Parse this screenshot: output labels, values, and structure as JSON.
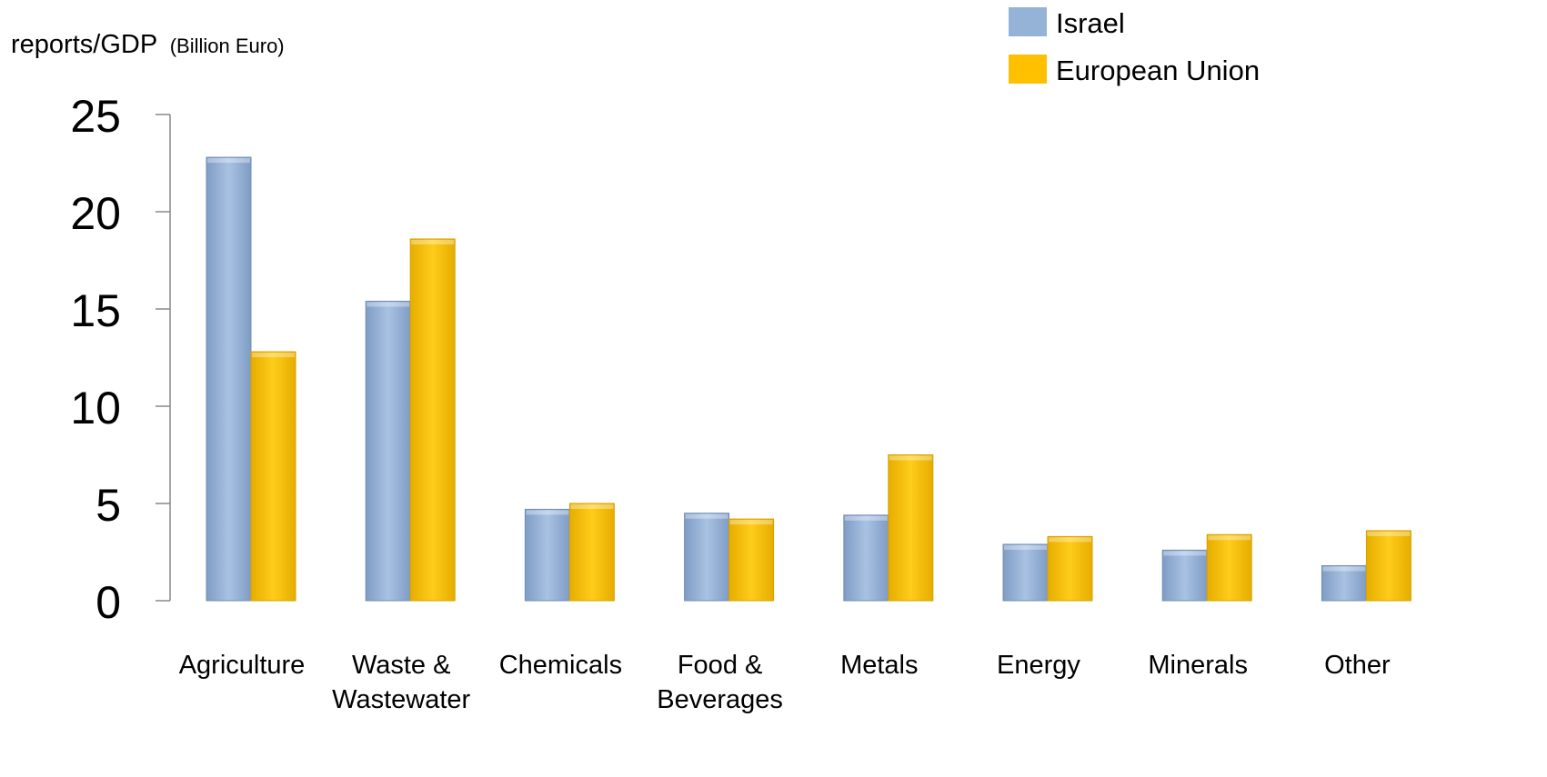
{
  "chart_data": {
    "type": "bar",
    "ylabel": "reports/GDP",
    "ylabel_unit": "(Billion Euro)",
    "categories": [
      [
        "Agriculture"
      ],
      [
        "Waste &",
        "Wastewater"
      ],
      [
        "Chemicals"
      ],
      [
        "Food &",
        "Beverages"
      ],
      [
        "Metals"
      ],
      [
        "Energy"
      ],
      [
        "Minerals"
      ],
      [
        "Other"
      ]
    ],
    "series": [
      {
        "name": "Israel",
        "color": "#95B3D7",
        "values": [
          22.8,
          15.4,
          4.7,
          4.5,
          4.4,
          2.9,
          2.6,
          1.8
        ]
      },
      {
        "name": "European Union",
        "color": "#FFC000",
        "values": [
          12.8,
          18.6,
          5.0,
          4.2,
          7.5,
          3.3,
          3.4,
          3.6
        ]
      }
    ],
    "ylim": [
      0,
      25
    ],
    "yticks": [
      "0",
      "5",
      "10",
      "15",
      "20",
      "25"
    ],
    "grid": false,
    "legend_position": "top-right"
  }
}
